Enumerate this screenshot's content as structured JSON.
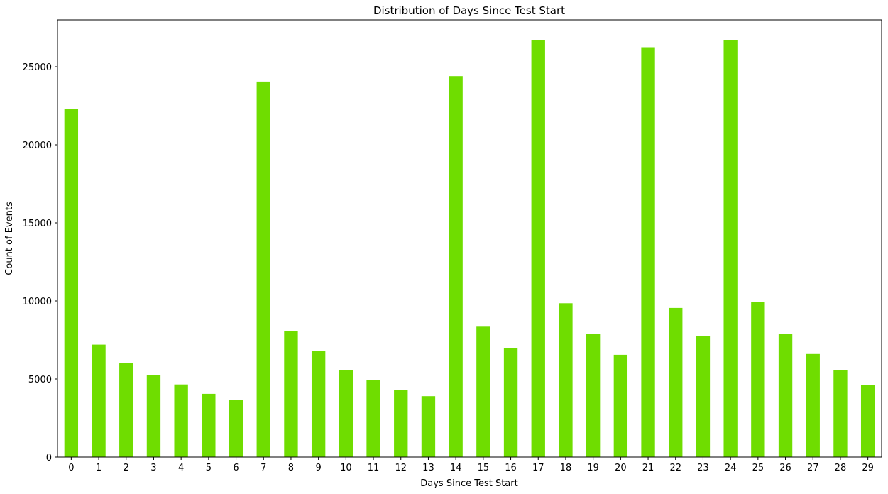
{
  "chart_data": {
    "type": "bar",
    "title": "Distribution of Days Since Test Start",
    "xlabel": "Days Since Test Start",
    "ylabel": "Count of Events",
    "categories": [
      "0",
      "1",
      "2",
      "3",
      "4",
      "5",
      "6",
      "7",
      "8",
      "9",
      "10",
      "11",
      "12",
      "13",
      "14",
      "15",
      "16",
      "17",
      "18",
      "19",
      "20",
      "21",
      "22",
      "23",
      "24",
      "25",
      "26",
      "27",
      "28",
      "29"
    ],
    "values": [
      22300,
      7200,
      6000,
      5250,
      4650,
      4050,
      3650,
      24050,
      8050,
      6800,
      5550,
      4950,
      4300,
      3900,
      24400,
      8350,
      7000,
      26700,
      9850,
      7900,
      6550,
      26250,
      9550,
      7750,
      26700,
      9950,
      7900,
      6600,
      5550,
      4600
    ],
    "ylim": [
      0,
      28000
    ],
    "yticks": [
      0,
      5000,
      10000,
      15000,
      20000,
      25000
    ],
    "grid": false,
    "legend": false,
    "bar_color": "#6fdd00"
  }
}
